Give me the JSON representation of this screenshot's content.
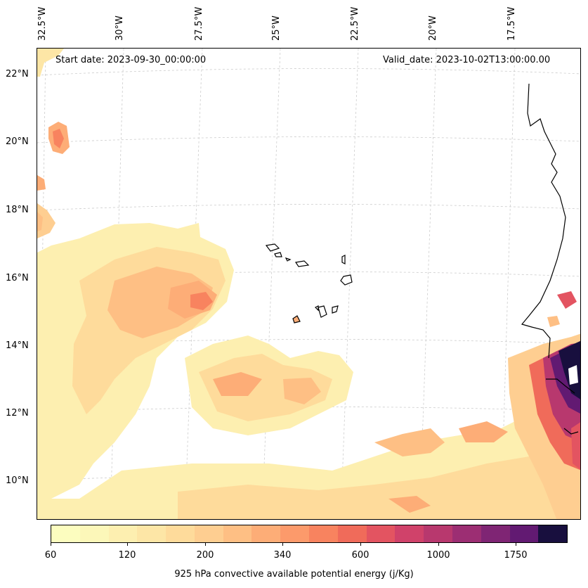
{
  "header": {
    "start_date": "Start date: 2023-09-30_00:00:00",
    "valid_date": "Valid_date: 2023-10-02T13:00:00.00"
  },
  "axes": {
    "lon_labels": [
      "32.5°W",
      "30°W",
      "27.5°W",
      "25°W",
      "22.5°W",
      "20°W",
      "17.5°W"
    ],
    "lat_labels": [
      "22°N",
      "20°N",
      "18°N",
      "16°N",
      "14°N",
      "12°N",
      "10°N"
    ]
  },
  "colorbar": {
    "title": "925 hPa convective available potential energy (j/Kg)",
    "tick_labels": [
      "60",
      "120",
      "200",
      "340",
      "600",
      "1000",
      "1750"
    ],
    "colors": [
      "#fcfdbf",
      "#fcf7b9",
      "#fdefb0",
      "#fde6a6",
      "#fedb9b",
      "#fece91",
      "#febf84",
      "#fdad77",
      "#fc9a6b",
      "#f8835f",
      "#f06b5a",
      "#e35461",
      "#d0426a",
      "#b8386e",
      "#9c2e73",
      "#7f2574",
      "#621a72",
      "#180f3e"
    ]
  }
}
